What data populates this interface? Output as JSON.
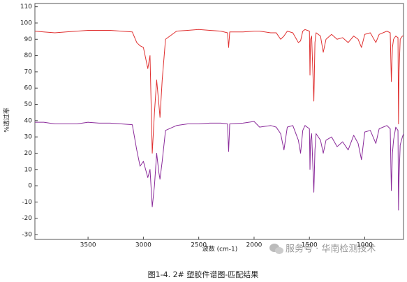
{
  "chart_data": {
    "type": "line",
    "caption": "图1-4. 2# 塑胶件谱图-匹配结果",
    "watermark": "服务号 · 华南检测技术",
    "xlabel": "波数 (cm-1)",
    "ylabel": "%透过率",
    "x": [
      3980,
      3900,
      3800,
      3700,
      3600,
      3500,
      3400,
      3300,
      3200,
      3100,
      3060,
      3030,
      3000,
      2960,
      2940,
      2920,
      2900,
      2880,
      2860,
      2850,
      2830,
      2800,
      2700,
      2600,
      2500,
      2400,
      2300,
      2240,
      2230,
      2220,
      2100,
      2000,
      1950,
      1850,
      1800,
      1760,
      1730,
      1700,
      1650,
      1600,
      1580,
      1560,
      1540,
      1500,
      1495,
      1490,
      1480,
      1460,
      1450,
      1440,
      1400,
      1375,
      1350,
      1300,
      1250,
      1200,
      1150,
      1100,
      1060,
      1030,
      1000,
      950,
      900,
      870,
      800,
      770,
      760,
      750,
      740,
      720,
      700,
      695,
      690,
      680,
      660,
      650
    ],
    "series": [
      {
        "color": "#e03030",
        "values": [
          95,
          94.5,
          94,
          94.5,
          95,
          95.5,
          95.5,
          95.5,
          95,
          94.5,
          88,
          86,
          85,
          72,
          80,
          20,
          45,
          65,
          50,
          42,
          65,
          90,
          95,
          95.5,
          96,
          95.5,
          95,
          94,
          85,
          94.5,
          94.5,
          95,
          95,
          94,
          94,
          90,
          92,
          95,
          94,
          88,
          89,
          95,
          96,
          95,
          68,
          90,
          92,
          52,
          88,
          94,
          92,
          82,
          90,
          93,
          90,
          91,
          88,
          92,
          90,
          85,
          93,
          94,
          88,
          93,
          95,
          94,
          64,
          85,
          90,
          92,
          91,
          38,
          70,
          90,
          92,
          92
        ]
      },
      {
        "color": "#8a2a9a",
        "values": [
          39,
          39,
          38,
          38,
          38,
          39,
          38.5,
          38.5,
          38,
          37.5,
          22,
          12,
          15,
          5,
          10,
          -13,
          0,
          20,
          8,
          4,
          15,
          34,
          37,
          38,
          38,
          38.5,
          38.5,
          38,
          21,
          38,
          38.5,
          39.5,
          36,
          37,
          36,
          32,
          22,
          36,
          37,
          28,
          20,
          34,
          37,
          35,
          10,
          28,
          32,
          -4,
          22,
          32,
          28,
          20,
          28,
          30,
          24,
          27,
          22,
          31,
          26,
          16,
          33,
          34,
          26,
          35,
          37,
          35,
          -3,
          20,
          28,
          36,
          34,
          -15,
          5,
          25,
          30,
          32
        ]
      }
    ],
    "xlim": [
      3980,
      650
    ],
    "xticks": [
      3500,
      3000,
      2500,
      2000,
      1500,
      1000
    ],
    "ylim": [
      -33,
      112
    ],
    "yticks": [
      -30,
      -20,
      -10,
      0,
      10,
      20,
      30,
      40,
      50,
      60,
      70,
      80,
      90,
      100,
      110
    ],
    "grid": false
  }
}
